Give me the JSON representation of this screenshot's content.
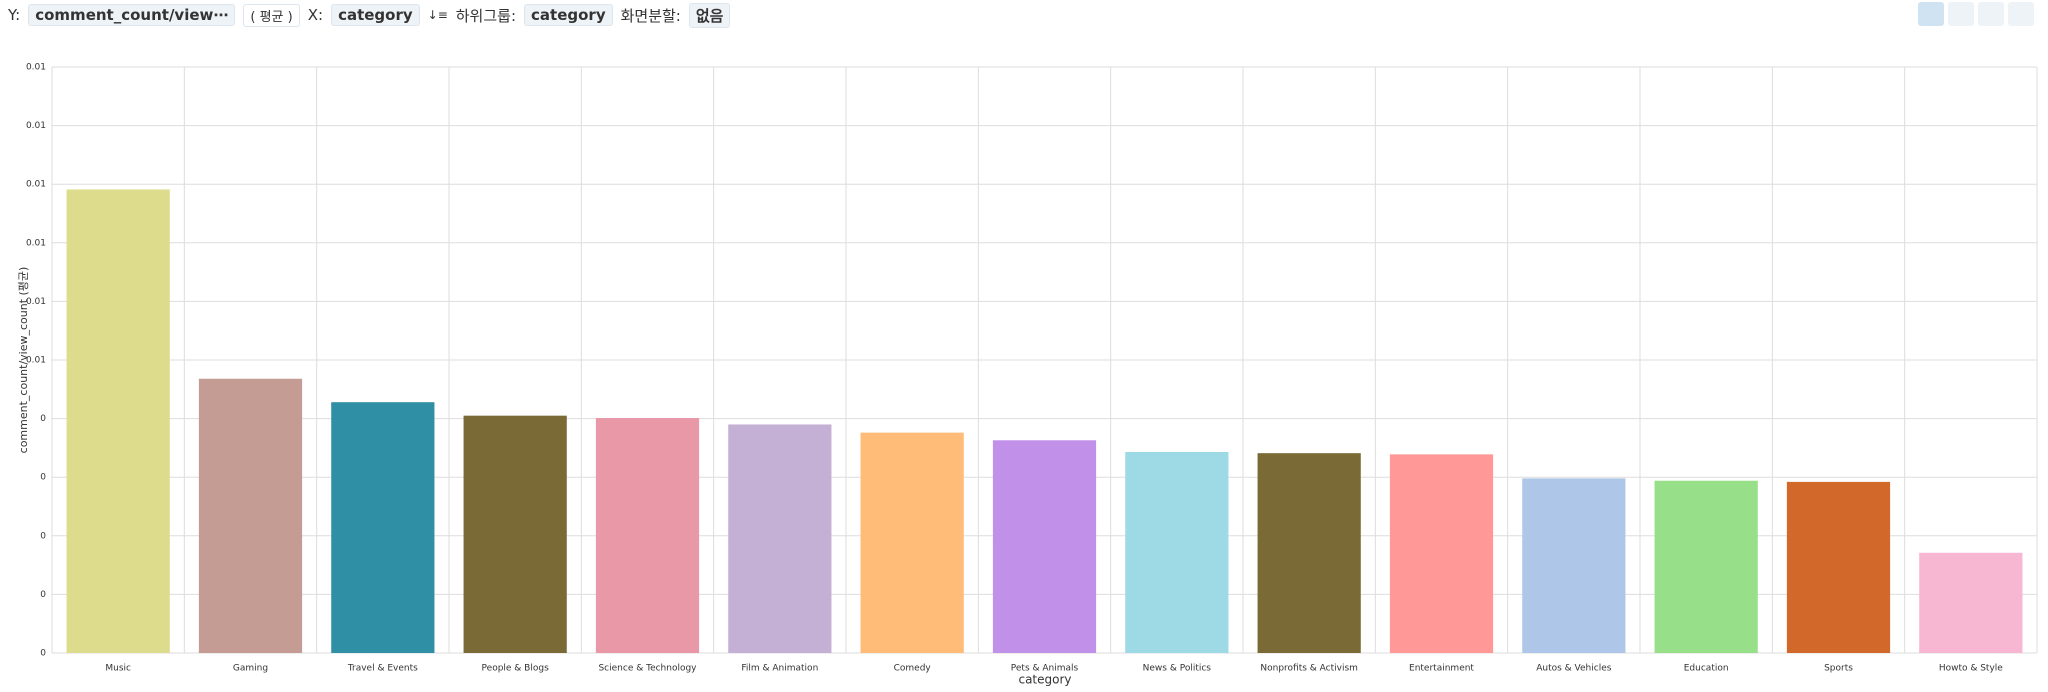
{
  "toolbar": {
    "y_label": "Y:",
    "y_field": "comment_count/view⋯",
    "agg": "( 평균 )",
    "x_label": "X:",
    "x_field": "category",
    "sub_label": "하위그룹:",
    "sub_field": "category",
    "split_label": "화면분할:",
    "split_value": "없음"
  },
  "chart_data": {
    "type": "bar",
    "xlabel": "category",
    "ylabel": "comment_count/view_count (평균)",
    "categories": [
      "Music",
      "Gaming",
      "Travel & Events",
      "People & Blogs",
      "Science & Technology",
      "Film & Animation",
      "Comedy",
      "Pets & Animals",
      "News & Politics",
      "Nonprofits & Activism",
      "Entertainment",
      "Autos & Vehicles",
      "Education",
      "Sports",
      "Howto & Style"
    ],
    "values": [
      0.00791,
      0.00468,
      0.00428,
      0.00405,
      0.00401,
      0.0039,
      0.00376,
      0.00363,
      0.00343,
      0.00341,
      0.00339,
      0.00298,
      0.00294,
      0.00292,
      0.00171
    ],
    "colors": [
      "#dcdc8c",
      "#c49c94",
      "#2e8fa5",
      "#7a6a35",
      "#e898a6",
      "#c4b0d5",
      "#ffbb78",
      "#c190e8",
      "#9edae5",
      "#7a6a35",
      "#ff9896",
      "#aec7e8",
      "#98df8a",
      "#d2692a",
      "#f7b6d2"
    ],
    "ylim": [
      0,
      0.01
    ],
    "yticks": [
      0,
      {
        "value": 0.001,
        "label": "0"
      },
      {
        "value": 0.002,
        "label": "0"
      },
      {
        "value": 0.003,
        "label": "0"
      },
      {
        "value": 0.004,
        "label": "0"
      },
      {
        "value": 0.005,
        "label": "0.01"
      },
      {
        "value": 0.006,
        "label": "0.01"
      },
      {
        "value": 0.007,
        "label": "0.01"
      },
      {
        "value": 0.008,
        "label": "0.01"
      },
      {
        "value": 0.009,
        "label": "0.01"
      },
      0.01
    ],
    "grid": true
  }
}
